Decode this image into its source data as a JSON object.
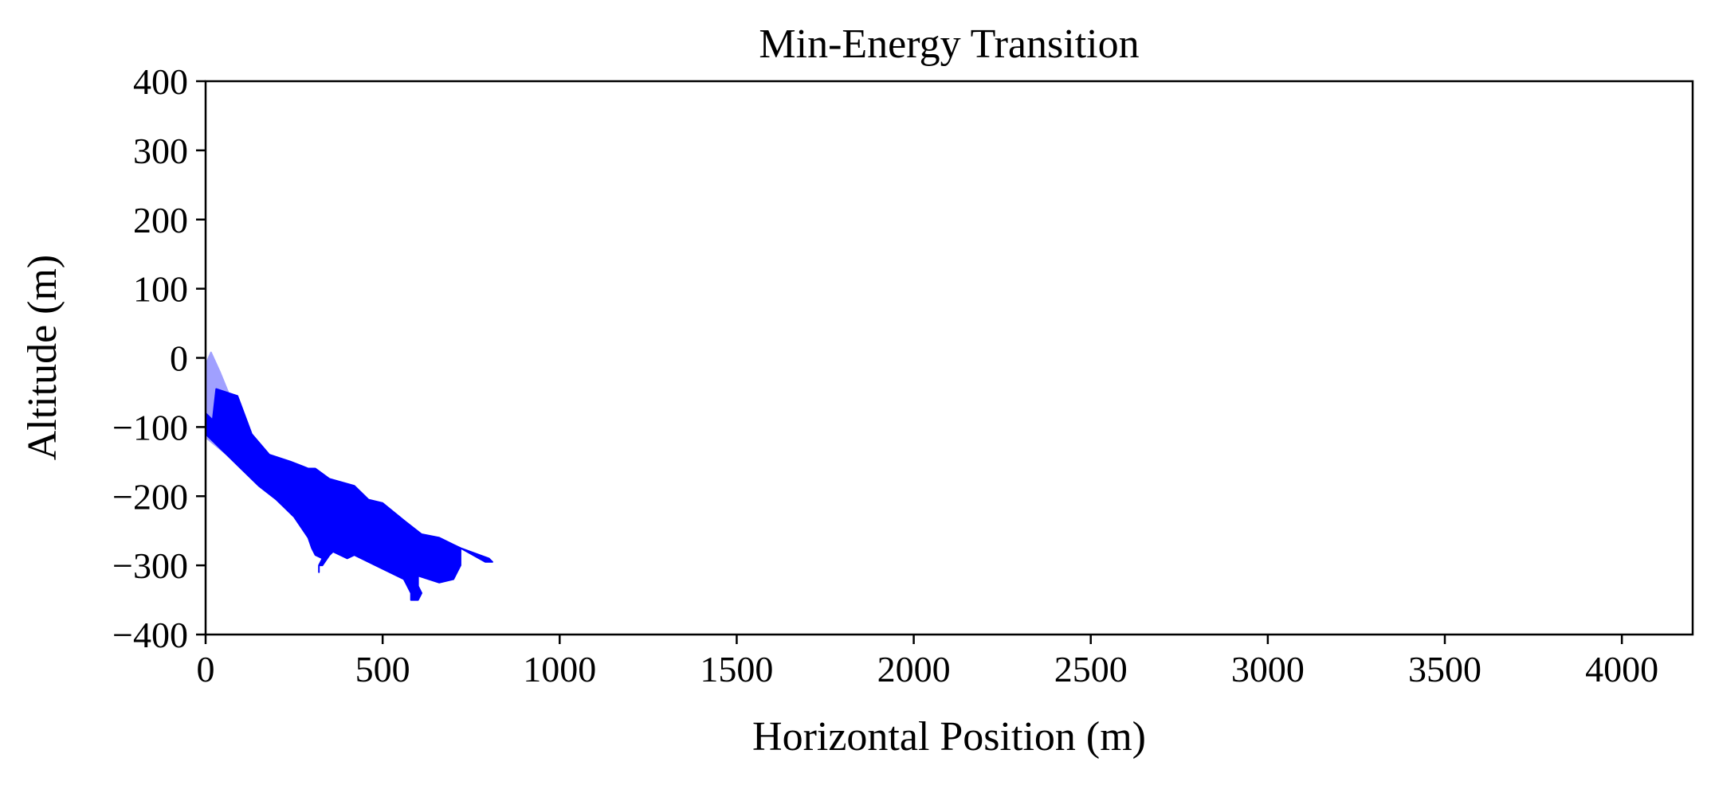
{
  "chart_data": {
    "type": "area",
    "title": "Min-Energy Transition",
    "xlabel": "Horizontal Position (m)",
    "ylabel": "Altitude (m)",
    "xlim": [
      0,
      4200
    ],
    "ylim": [
      -400,
      400
    ],
    "xticks": [
      0,
      500,
      1000,
      1500,
      2000,
      2500,
      3000,
      3500,
      4000
    ],
    "yticks": [
      -400,
      -300,
      -200,
      -100,
      0,
      100,
      200,
      300,
      400
    ],
    "xtick_labels": [
      "0",
      "500",
      "1000",
      "1500",
      "2000",
      "2500",
      "3000",
      "3500",
      "4000"
    ],
    "ytick_labels": [
      "−400",
      "−300",
      "−200",
      "−100",
      "0",
      "100",
      "200",
      "300",
      "400"
    ],
    "grid": false,
    "colors": {
      "body": "#0000ff",
      "trail": "#a0a0ff",
      "axes": "#000000"
    },
    "series": [
      {
        "style": "trail",
        "x": [
          0,
          15,
          40,
          80,
          120,
          160,
          200,
          240,
          280,
          320,
          340,
          320,
          250,
          180,
          120,
          60,
          0,
          0
        ],
        "y": [
          -10,
          8,
          -20,
          -70,
          -110,
          -140,
          -160,
          -175,
          -182,
          -190,
          -200,
          -210,
          -200,
          -185,
          -165,
          -140,
          -115,
          -10
        ]
      },
      {
        "style": "body",
        "x": [
          0,
          20,
          30,
          90,
          130,
          180,
          240,
          290,
          310,
          350,
          420,
          460,
          500,
          560,
          610,
          660,
          700,
          720,
          800,
          810,
          790,
          720,
          720,
          700,
          660,
          600,
          600,
          610,
          600,
          580,
          580,
          560,
          500,
          420,
          400,
          360,
          350,
          330,
          320,
          320,
          320,
          330,
          310,
          300,
          290,
          250,
          200,
          150,
          100,
          50,
          0,
          0,
          0
        ],
        "y": [
          -80,
          -90,
          -45,
          -55,
          -110,
          -140,
          -150,
          -160,
          -160,
          -175,
          -185,
          -205,
          -210,
          -235,
          -255,
          -260,
          -270,
          -275,
          -290,
          -295,
          -295,
          -275,
          -300,
          -320,
          -325,
          -315,
          -330,
          -340,
          -350,
          -350,
          -340,
          -320,
          -305,
          -285,
          -290,
          -280,
          -285,
          -300,
          -300,
          -310,
          -300,
          -290,
          -285,
          -275,
          -260,
          -230,
          -205,
          -185,
          -160,
          -135,
          -110,
          -145,
          -80
        ]
      }
    ]
  }
}
